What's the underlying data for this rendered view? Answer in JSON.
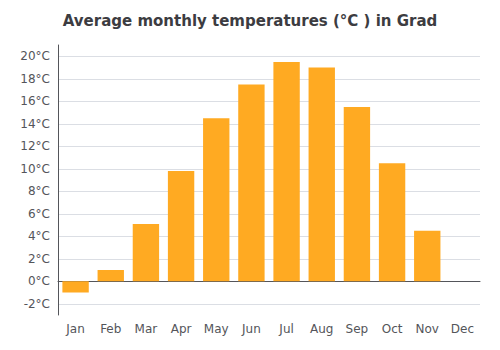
{
  "chart_data": {
    "type": "bar",
    "title": "Average monthly temperatures (°C ) in Grad",
    "categories": [
      "Jan",
      "Feb",
      "Mar",
      "Apr",
      "May",
      "Jun",
      "Jul",
      "Aug",
      "Sep",
      "Oct",
      "Nov",
      "Dec"
    ],
    "values": [
      -1.0,
      1.0,
      5.1,
      9.8,
      14.5,
      17.5,
      19.5,
      19.0,
      15.5,
      10.5,
      4.5,
      0.0
    ],
    "color": "#FFAA22",
    "ylim": [
      -3.0,
      21.0
    ],
    "yticks": [
      {
        "value": -2,
        "label": "-2°C"
      },
      {
        "value": 0,
        "label": "0°C"
      },
      {
        "value": 2,
        "label": "2°C"
      },
      {
        "value": 4,
        "label": "4°C"
      },
      {
        "value": 6,
        "label": "6°C"
      },
      {
        "value": 8,
        "label": "8°C"
      },
      {
        "value": 10,
        "label": "10°C"
      },
      {
        "value": 12,
        "label": "12°C"
      },
      {
        "value": 14,
        "label": "14°C"
      },
      {
        "value": 16,
        "label": "16°C"
      },
      {
        "value": 18,
        "label": "18°C"
      },
      {
        "value": 20,
        "label": "20°C"
      }
    ],
    "grid": true
  }
}
